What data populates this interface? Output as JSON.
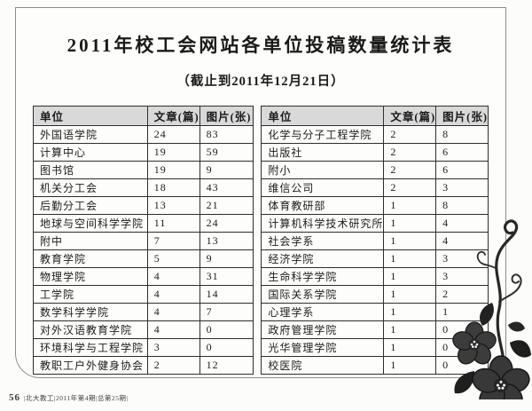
{
  "page": {
    "title": "2011年校工会网站各单位投稿数量统计表",
    "subtitle": "（截止到2011年12月21日）",
    "footer": {
      "page_number": "56",
      "journal_info": "|北大教工|2011年第4期|总第25期|"
    }
  },
  "tables": {
    "headers": [
      "单位",
      "文章(篇)",
      "图片(张)"
    ],
    "left_rows": [
      [
        "外国语学院",
        "24",
        "83"
      ],
      [
        "计算中心",
        "19",
        "59"
      ],
      [
        "图书馆",
        "19",
        "9"
      ],
      [
        "机关分工会",
        "18",
        "43"
      ],
      [
        "后勤分工会",
        "13",
        "21"
      ],
      [
        "地球与空间科学学院",
        "11",
        "24"
      ],
      [
        "附中",
        "7",
        "13"
      ],
      [
        "教育学院",
        "5",
        "9"
      ],
      [
        "物理学院",
        "4",
        "31"
      ],
      [
        "工学院",
        "4",
        "14"
      ],
      [
        "数学科学学院",
        "4",
        "7"
      ],
      [
        "对外汉语教育学院",
        "4",
        "0"
      ],
      [
        "环境科学与工程学院",
        "3",
        "0"
      ],
      [
        "教职工户外健身协会",
        "2",
        "12"
      ]
    ],
    "right_rows": [
      [
        "化学与分子工程学院",
        "2",
        "8"
      ],
      [
        "出版社",
        "2",
        "6"
      ],
      [
        "附小",
        "2",
        "6"
      ],
      [
        "维信公司",
        "2",
        "3"
      ],
      [
        "体育教研部",
        "1",
        "8"
      ],
      [
        "计算机科学技术研究所",
        "1",
        "4"
      ],
      [
        "社会学系",
        "1",
        "4"
      ],
      [
        "经济学院",
        "1",
        "3"
      ],
      [
        "生命科学学院",
        "1",
        "3"
      ],
      [
        "国际关系学院",
        "1",
        "2"
      ],
      [
        "心理学系",
        "1",
        "1"
      ],
      [
        "政府管理学院",
        "1",
        "0"
      ],
      [
        "光华管理学院",
        "1",
        "0"
      ],
      [
        "校医院",
        "1",
        "0"
      ]
    ]
  },
  "colors": {
    "table_header_bg": "#d9d9d9",
    "table_border": "#2e2e2e",
    "page_border": "#8d8d8d",
    "flower_petal": "#3a3a3a",
    "flower_leaf": "#1f1f1f",
    "text": "#1a1a1a"
  },
  "icons": {
    "flower_ornament": "flower-ornament-icon"
  }
}
